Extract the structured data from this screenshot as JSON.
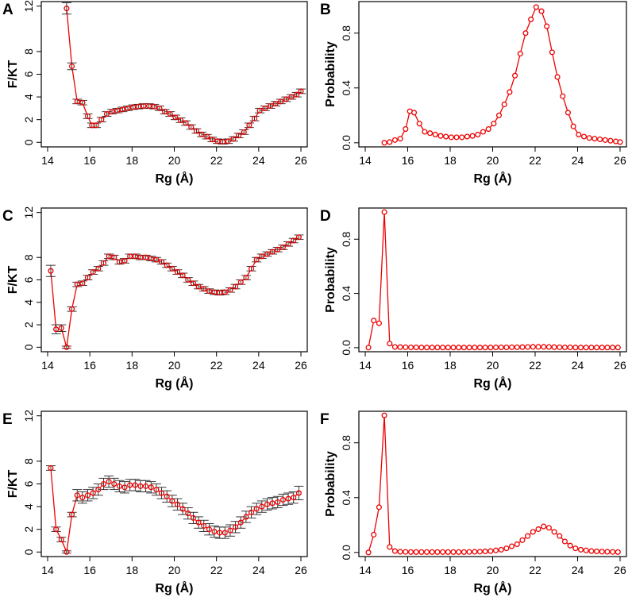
{
  "figure": {
    "colors": {
      "series": "#ee0000",
      "errorbar": "#222222",
      "axis": "#000000"
    }
  },
  "chart_data": [
    {
      "panel": "A",
      "type": "line",
      "xlabel": "Rg (Å)",
      "ylabel": "F/KT",
      "xlim": [
        13.7,
        26.3
      ],
      "ylim": [
        -0.4,
        12.4
      ],
      "xticks": [
        14,
        16,
        18,
        20,
        22,
        24,
        26
      ],
      "yticks": [
        0,
        2,
        4,
        6,
        8,
        12
      ],
      "error_bars": true,
      "series": [
        {
          "name": "F/KT",
          "x": [
            14.9,
            15.15,
            15.4,
            15.65,
            15.9,
            16.1,
            16.3,
            16.55,
            16.8,
            17.05,
            17.3,
            17.55,
            17.8,
            18.05,
            18.3,
            18.55,
            18.8,
            19.05,
            19.3,
            19.55,
            19.8,
            20.05,
            20.3,
            20.55,
            20.8,
            21.05,
            21.3,
            21.55,
            21.8,
            22.05,
            22.3,
            22.55,
            22.8,
            23.05,
            23.3,
            23.55,
            23.8,
            24.05,
            24.3,
            24.55,
            24.8,
            25.05,
            25.3,
            25.55,
            25.8,
            26.0
          ],
          "y": [
            11.8,
            6.7,
            3.6,
            3.5,
            2.3,
            1.5,
            1.5,
            2.0,
            2.5,
            2.7,
            2.8,
            2.9,
            3.0,
            3.1,
            3.15,
            3.2,
            3.2,
            3.15,
            3.0,
            2.7,
            2.5,
            2.2,
            1.95,
            1.7,
            1.35,
            1.0,
            0.7,
            0.5,
            0.25,
            0.1,
            0.05,
            0.1,
            0.3,
            0.6,
            0.9,
            1.5,
            2.1,
            2.8,
            3.0,
            3.2,
            3.4,
            3.6,
            3.8,
            4.0,
            4.2,
            4.5
          ],
          "err": [
            0.5,
            0.3,
            0.2,
            0.2,
            0.2,
            0.2,
            0.2,
            0.2,
            0.2,
            0.2,
            0.2,
            0.2,
            0.2,
            0.2,
            0.2,
            0.2,
            0.2,
            0.2,
            0.2,
            0.2,
            0.2,
            0.2,
            0.2,
            0.2,
            0.2,
            0.2,
            0.2,
            0.2,
            0.2,
            0.2,
            0.2,
            0.2,
            0.2,
            0.2,
            0.2,
            0.2,
            0.2,
            0.2,
            0.2,
            0.2,
            0.2,
            0.2,
            0.2,
            0.2,
            0.2,
            0.2
          ]
        }
      ]
    },
    {
      "panel": "B",
      "type": "line",
      "xlabel": "Rg (Å)",
      "ylabel": "Probability",
      "xlim": [
        13.7,
        26.3
      ],
      "ylim": [
        -0.03,
        1.03
      ],
      "xticks": [
        14,
        16,
        18,
        20,
        22,
        24,
        26
      ],
      "yticks": [
        0.0,
        0.4,
        0.8
      ],
      "ytick_labels": [
        "0.0",
        "0.4",
        "0.8"
      ],
      "error_bars": false,
      "series": [
        {
          "name": "Probability",
          "x": [
            14.9,
            15.15,
            15.4,
            15.65,
            15.9,
            16.1,
            16.3,
            16.55,
            16.8,
            17.05,
            17.3,
            17.55,
            17.8,
            18.05,
            18.3,
            18.55,
            18.8,
            19.05,
            19.3,
            19.55,
            19.8,
            20.05,
            20.3,
            20.55,
            20.8,
            21.05,
            21.3,
            21.55,
            21.8,
            22.05,
            22.3,
            22.55,
            22.8,
            23.05,
            23.3,
            23.55,
            23.8,
            24.05,
            24.3,
            24.55,
            24.8,
            25.05,
            25.3,
            25.55,
            25.8,
            26.0
          ],
          "y": [
            0.0,
            0.005,
            0.02,
            0.03,
            0.1,
            0.23,
            0.22,
            0.14,
            0.08,
            0.07,
            0.06,
            0.05,
            0.045,
            0.04,
            0.04,
            0.04,
            0.045,
            0.05,
            0.06,
            0.08,
            0.1,
            0.14,
            0.2,
            0.28,
            0.37,
            0.49,
            0.65,
            0.8,
            0.9,
            0.99,
            0.96,
            0.85,
            0.66,
            0.48,
            0.34,
            0.22,
            0.12,
            0.06,
            0.045,
            0.035,
            0.03,
            0.025,
            0.02,
            0.015,
            0.01,
            0.005
          ]
        }
      ]
    },
    {
      "panel": "C",
      "type": "line",
      "xlabel": "Rg (Å)",
      "ylabel": "F/KT",
      "xlim": [
        13.7,
        26.3
      ],
      "ylim": [
        -0.4,
        12.4
      ],
      "xticks": [
        14,
        16,
        18,
        20,
        22,
        24,
        26
      ],
      "yticks": [
        0,
        2,
        4,
        6,
        8,
        12
      ],
      "error_bars": true,
      "series": [
        {
          "name": "F/KT",
          "x": [
            14.15,
            14.4,
            14.65,
            14.9,
            15.15,
            15.4,
            15.65,
            15.9,
            16.15,
            16.4,
            16.65,
            16.9,
            17.15,
            17.4,
            17.65,
            17.9,
            18.15,
            18.4,
            18.65,
            18.9,
            19.15,
            19.4,
            19.65,
            19.9,
            20.15,
            20.4,
            20.65,
            20.9,
            21.15,
            21.4,
            21.65,
            21.9,
            22.15,
            22.4,
            22.65,
            22.9,
            23.15,
            23.4,
            23.65,
            23.9,
            24.15,
            24.4,
            24.65,
            24.9,
            25.15,
            25.4,
            25.65,
            25.9
          ],
          "y": [
            6.8,
            1.6,
            1.7,
            0.0,
            3.4,
            5.6,
            5.7,
            6.2,
            6.7,
            7.0,
            7.5,
            8.1,
            8.0,
            7.6,
            7.7,
            8.1,
            8.1,
            8.0,
            8.0,
            7.9,
            7.8,
            7.6,
            7.3,
            7.0,
            6.7,
            6.4,
            6.0,
            5.7,
            5.4,
            5.2,
            5.0,
            4.9,
            4.85,
            4.9,
            5.1,
            5.4,
            5.8,
            6.2,
            7.0,
            7.8,
            8.1,
            8.3,
            8.5,
            8.7,
            8.9,
            9.2,
            9.5,
            9.8
          ],
          "err": [
            0.5,
            0.4,
            0.3,
            0.1,
            0.2,
            0.2,
            0.2,
            0.2,
            0.2,
            0.2,
            0.2,
            0.2,
            0.2,
            0.2,
            0.2,
            0.2,
            0.2,
            0.2,
            0.2,
            0.2,
            0.2,
            0.2,
            0.2,
            0.2,
            0.2,
            0.2,
            0.2,
            0.2,
            0.2,
            0.2,
            0.2,
            0.2,
            0.2,
            0.2,
            0.2,
            0.2,
            0.2,
            0.2,
            0.2,
            0.2,
            0.2,
            0.2,
            0.2,
            0.2,
            0.2,
            0.2,
            0.2,
            0.2
          ]
        }
      ]
    },
    {
      "panel": "D",
      "type": "line",
      "xlabel": "Rg (Å)",
      "ylabel": "Probability",
      "xlim": [
        13.7,
        26.3
      ],
      "ylim": [
        -0.03,
        1.03
      ],
      "xticks": [
        14,
        16,
        18,
        20,
        22,
        24,
        26
      ],
      "yticks": [
        0.0,
        0.4,
        0.8
      ],
      "ytick_labels": [
        "0.0",
        "0.4",
        "0.8"
      ],
      "error_bars": false,
      "series": [
        {
          "name": "Probability",
          "x": [
            14.15,
            14.4,
            14.65,
            14.9,
            15.15,
            15.4,
            15.65,
            15.9,
            16.15,
            16.4,
            16.65,
            16.9,
            17.15,
            17.4,
            17.65,
            17.9,
            18.15,
            18.4,
            18.65,
            18.9,
            19.15,
            19.4,
            19.65,
            19.9,
            20.15,
            20.4,
            20.65,
            20.9,
            21.15,
            21.4,
            21.65,
            21.9,
            22.15,
            22.4,
            22.65,
            22.9,
            23.15,
            23.4,
            23.65,
            23.9,
            24.15,
            24.4,
            24.65,
            24.9,
            25.15,
            25.4,
            25.65,
            25.9
          ],
          "y": [
            0.0,
            0.2,
            0.18,
            1.0,
            0.03,
            0.005,
            0.004,
            0.003,
            0.002,
            0.002,
            0.001,
            0.001,
            0.001,
            0.001,
            0.001,
            0.001,
            0.001,
            0.001,
            0.001,
            0.001,
            0.001,
            0.001,
            0.001,
            0.001,
            0.002,
            0.002,
            0.002,
            0.003,
            0.003,
            0.004,
            0.005,
            0.006,
            0.006,
            0.006,
            0.005,
            0.004,
            0.003,
            0.002,
            0.002,
            0.001,
            0.001,
            0.001,
            0.001,
            0.001,
            0.001,
            0.001,
            0.001,
            0.001
          ]
        }
      ]
    },
    {
      "panel": "E",
      "type": "line",
      "xlabel": "Rg (Å)",
      "ylabel": "F/KT",
      "xlim": [
        13.7,
        26.3
      ],
      "ylim": [
        -0.4,
        12.4
      ],
      "xticks": [
        14,
        16,
        18,
        20,
        22,
        24,
        26
      ],
      "yticks": [
        0,
        2,
        4,
        6,
        8,
        12
      ],
      "error_bars": true,
      "series": [
        {
          "name": "F/KT",
          "x": [
            14.15,
            14.4,
            14.65,
            14.9,
            15.15,
            15.4,
            15.65,
            15.9,
            16.15,
            16.4,
            16.65,
            16.9,
            17.15,
            17.4,
            17.65,
            17.9,
            18.15,
            18.4,
            18.65,
            18.9,
            19.15,
            19.4,
            19.65,
            19.9,
            20.15,
            20.4,
            20.65,
            20.9,
            21.15,
            21.4,
            21.65,
            21.9,
            22.15,
            22.4,
            22.65,
            22.9,
            23.15,
            23.4,
            23.65,
            23.9,
            24.15,
            24.4,
            24.65,
            24.9,
            25.15,
            25.4,
            25.65,
            25.9
          ],
          "y": [
            7.4,
            2.0,
            1.1,
            0.0,
            3.3,
            5.0,
            4.8,
            5.0,
            5.2,
            5.5,
            6.0,
            6.2,
            6.0,
            5.8,
            5.7,
            5.9,
            5.9,
            5.8,
            5.8,
            5.7,
            5.5,
            5.2,
            4.9,
            4.5,
            4.2,
            3.8,
            3.4,
            3.0,
            2.6,
            2.3,
            2.0,
            1.8,
            1.7,
            1.7,
            1.9,
            2.2,
            2.6,
            3.1,
            3.5,
            3.8,
            4.0,
            4.2,
            4.3,
            4.4,
            4.6,
            4.7,
            4.8,
            5.2
          ],
          "err": [
            0.2,
            0.2,
            0.2,
            0.1,
            0.2,
            0.5,
            0.5,
            0.5,
            0.5,
            0.5,
            0.5,
            0.5,
            0.5,
            0.5,
            0.5,
            0.5,
            0.5,
            0.5,
            0.5,
            0.5,
            0.5,
            0.5,
            0.5,
            0.5,
            0.5,
            0.5,
            0.5,
            0.5,
            0.5,
            0.5,
            0.5,
            0.5,
            0.5,
            0.5,
            0.5,
            0.5,
            0.5,
            0.5,
            0.5,
            0.5,
            0.5,
            0.5,
            0.5,
            0.5,
            0.5,
            0.5,
            0.5,
            0.6
          ]
        }
      ]
    },
    {
      "panel": "F",
      "type": "line",
      "xlabel": "Rg (Å)",
      "ylabel": "Probability",
      "xlim": [
        13.7,
        26.3
      ],
      "ylim": [
        -0.03,
        1.03
      ],
      "xticks": [
        14,
        16,
        18,
        20,
        22,
        24,
        26
      ],
      "yticks": [
        0.0,
        0.4,
        0.8
      ],
      "ytick_labels": [
        "0.0",
        "0.4",
        "0.8"
      ],
      "error_bars": false,
      "series": [
        {
          "name": "Probability",
          "x": [
            14.15,
            14.4,
            14.65,
            14.9,
            15.15,
            15.4,
            15.65,
            15.9,
            16.15,
            16.4,
            16.65,
            16.9,
            17.15,
            17.4,
            17.65,
            17.9,
            18.15,
            18.4,
            18.65,
            18.9,
            19.15,
            19.4,
            19.65,
            19.9,
            20.15,
            20.4,
            20.65,
            20.9,
            21.15,
            21.4,
            21.65,
            21.9,
            22.15,
            22.4,
            22.65,
            22.9,
            23.15,
            23.4,
            23.65,
            23.9,
            24.15,
            24.4,
            24.65,
            24.9,
            25.15,
            25.4,
            25.65,
            25.9
          ],
          "y": [
            0.0,
            0.13,
            0.33,
            1.0,
            0.04,
            0.01,
            0.005,
            0.004,
            0.003,
            0.003,
            0.003,
            0.003,
            0.003,
            0.003,
            0.003,
            0.003,
            0.003,
            0.003,
            0.003,
            0.004,
            0.005,
            0.006,
            0.008,
            0.01,
            0.015,
            0.02,
            0.03,
            0.045,
            0.06,
            0.09,
            0.12,
            0.15,
            0.17,
            0.19,
            0.18,
            0.15,
            0.12,
            0.08,
            0.05,
            0.03,
            0.02,
            0.015,
            0.01,
            0.008,
            0.006,
            0.005,
            0.004,
            0.003
          ]
        }
      ]
    }
  ]
}
